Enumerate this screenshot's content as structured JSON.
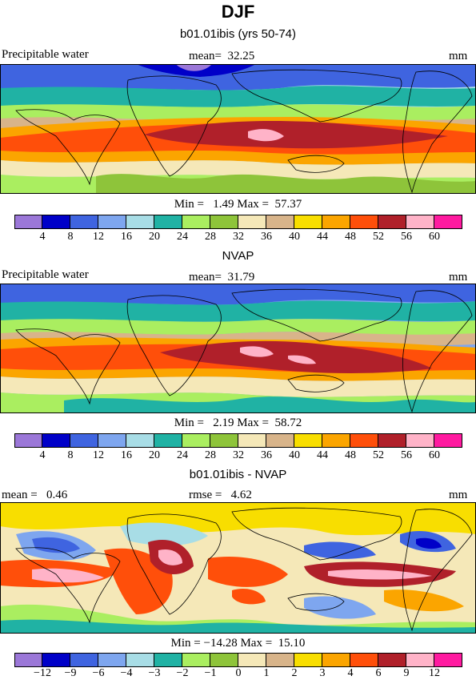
{
  "page": {
    "title": "DJF"
  },
  "panels": [
    {
      "subtitle": "b01.01ibis (yrs 50-74)",
      "left_label": "Precipitable water",
      "center_label": "mean=  32.25",
      "right_label": "mm",
      "minmax": "Min =   1.49 Max =  57.37",
      "levels": [
        "4",
        "8",
        "12",
        "16",
        "20",
        "24",
        "28",
        "32",
        "36",
        "40",
        "44",
        "48",
        "52",
        "56",
        "60"
      ],
      "field_mean": 32.25,
      "field_min": 1.49,
      "field_max": 57.37
    },
    {
      "subtitle": "NVAP",
      "left_label": "Precipitable water",
      "center_label": "mean=  31.79",
      "right_label": "mm",
      "minmax": "Min =   2.19 Max =  58.72",
      "levels": [
        "4",
        "8",
        "12",
        "16",
        "20",
        "24",
        "28",
        "32",
        "36",
        "40",
        "44",
        "48",
        "52",
        "56",
        "60"
      ],
      "field_mean": 31.79,
      "field_min": 2.19,
      "field_max": 58.72
    },
    {
      "subtitle": "b01.01ibis - NVAP",
      "left_label": "mean =   0.46",
      "center_label": "rmse =   4.62",
      "right_label": "mm",
      "minmax": "Min = −14.28 Max =  15.10",
      "levels": [
        "−12",
        "−9",
        "−6",
        "−4",
        "−3",
        "−2",
        "−1",
        "0",
        "1",
        "2",
        "3",
        "4",
        "6",
        "9",
        "12"
      ],
      "field_mean": 0.46,
      "field_rmse": 4.62,
      "field_min": -14.28,
      "field_max": 15.1
    }
  ],
  "colors": [
    "#9b77d8",
    "#0000c8",
    "#3f64e0",
    "#7ea6ef",
    "#a8dde6",
    "#20b2a4",
    "#aaee60",
    "#8ec43a",
    "#f5e8b8",
    "#d8b48a",
    "#f8de00",
    "#fba500",
    "#ff4f0a",
    "#b0202a",
    "#ffb3c8",
    "#ff1aa0"
  ]
}
